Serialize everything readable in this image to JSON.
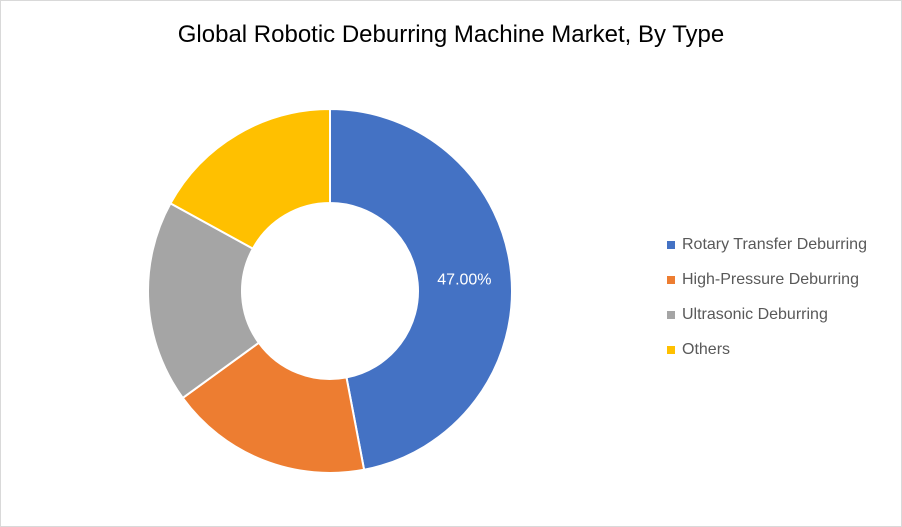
{
  "chart_data": {
    "type": "pie",
    "variant": "donut",
    "title": "Global Robotic Deburring Machine Market, By Type",
    "categories": [
      "Rotary Transfer Deburring",
      "High-Pressure Deburring",
      "Ultrasonic Deburring",
      "Others"
    ],
    "values": [
      47,
      18,
      18,
      17
    ],
    "unit": "%",
    "colors": [
      "#4472C4",
      "#ED7D31",
      "#A5A5A5",
      "#FFC000"
    ],
    "data_labels": [
      "47.00%",
      "",
      "",
      ""
    ],
    "legend_position": "right"
  }
}
